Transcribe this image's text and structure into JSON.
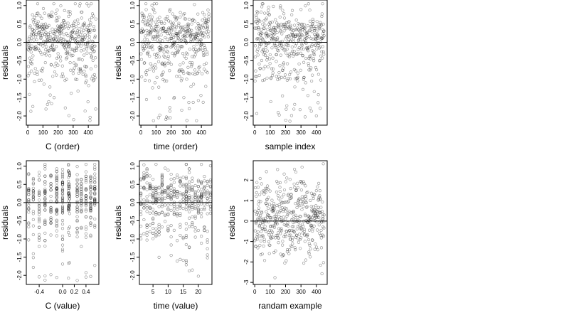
{
  "chart_data": [
    {
      "type": "scatter",
      "xlabel": "C (order)",
      "ylabel": "residuals",
      "xlim": [
        -10,
        470
      ],
      "ylim": [
        -2.25,
        1.15
      ],
      "xticks": [
        0,
        100,
        200,
        300,
        400
      ],
      "yticks": [
        1.0,
        0.5,
        0.0,
        -0.5,
        -1.0,
        -1.5,
        -2.0
      ],
      "ytick_labels": [
        "1.0",
        "0.5",
        "0.0",
        "-0.5",
        "-1.0",
        "-1.5",
        "-2.0"
      ],
      "hline": 0,
      "x_mode": "order",
      "n_points": 450,
      "point_count": 450,
      "y_dist": "residual",
      "seed": 11
    },
    {
      "type": "scatter",
      "xlabel": "time (order)",
      "ylabel": "residuals",
      "xlim": [
        -10,
        470
      ],
      "ylim": [
        -2.25,
        1.15
      ],
      "xticks": [
        0,
        100,
        200,
        300,
        400
      ],
      "yticks": [
        1.0,
        0.5,
        0.0,
        -0.5,
        -1.0,
        -1.5,
        -2.0
      ],
      "ytick_labels": [
        "1.0",
        "0.5",
        "0.0",
        "-0.5",
        "-1.0",
        "-1.5",
        "-2.0"
      ],
      "hline": 0,
      "x_mode": "order",
      "n_points": 450,
      "point_count": 450,
      "y_dist": "residual",
      "seed": 23
    },
    {
      "type": "scatter",
      "xlabel": "sample index",
      "ylabel": "residuals",
      "xlim": [
        -10,
        470
      ],
      "ylim": [
        -2.25,
        1.15
      ],
      "xticks": [
        0,
        100,
        200,
        300,
        400
      ],
      "yticks": [
        1.0,
        0.5,
        0.0,
        -0.5,
        -1.0,
        -1.5,
        -2.0
      ],
      "ytick_labels": [
        "1.0",
        "0.5",
        "0.0",
        "-0.5",
        "-1.0",
        "-1.5",
        "-2.0"
      ],
      "hline": 0,
      "x_mode": "order",
      "n_points": 450,
      "point_count": 450,
      "y_dist": "residual",
      "seed": 37
    },
    {
      "type": "scatter",
      "xlabel": "C (value)",
      "ylabel": "residuals",
      "xlim": [
        -0.62,
        0.62
      ],
      "ylim": [
        -2.25,
        1.15
      ],
      "xticks": [
        -0.4,
        0.0,
        0.2,
        0.4
      ],
      "xtick_labels": [
        "-0.4",
        "0.0",
        "0.2",
        "0.4"
      ],
      "yticks": [
        1.0,
        0.5,
        0.0,
        -0.5,
        -1.0,
        -1.5,
        -2.0
      ],
      "ytick_labels": [
        "1.0",
        "0.5",
        "0.0",
        "-0.5",
        "-1.0",
        "-1.5",
        "-2.0"
      ],
      "hline": 0,
      "x_mode": "levels",
      "x_levels": [
        -0.58,
        -0.5,
        -0.4,
        -0.3,
        -0.2,
        -0.1,
        0.0,
        0.1,
        0.12,
        0.25,
        0.32,
        0.4,
        0.48,
        0.55
      ],
      "n_points": 450,
      "point_count": 450,
      "y_dist": "residual",
      "seed": 41
    },
    {
      "type": "scatter",
      "xlabel": "time (value)",
      "ylabel": "residuals",
      "xlim": [
        0.5,
        24.5
      ],
      "ylim": [
        -2.25,
        1.15
      ],
      "xticks": [
        5,
        10,
        15,
        20
      ],
      "yticks": [
        1.0,
        0.5,
        0.0,
        -0.5,
        -1.0,
        -1.5,
        -2.0
      ],
      "ytick_labels": [
        "1.0",
        "0.5",
        "0.0",
        "-0.5",
        "-1.0",
        "-1.5",
        "-2.0"
      ],
      "hline": 0,
      "x_mode": "levels",
      "x_levels": [
        1,
        2,
        3,
        4,
        5,
        6,
        7,
        8,
        9,
        10,
        11,
        12,
        13,
        14,
        15,
        16,
        17,
        18,
        19,
        20,
        21,
        22,
        23,
        24
      ],
      "n_points": 450,
      "point_count": 450,
      "y_dist": "residual",
      "seed": 53
    },
    {
      "type": "scatter",
      "xlabel": "randam example",
      "ylabel": "residuals",
      "xlim": [
        -10,
        470
      ],
      "ylim": [
        -3.1,
        2.95
      ],
      "xticks": [
        0,
        100,
        200,
        300,
        400
      ],
      "yticks": [
        2,
        1,
        0,
        -1,
        -2,
        -3
      ],
      "ytick_labels": [
        "2",
        "1",
        "0",
        "-1",
        "-2",
        "-3"
      ],
      "hline": 0,
      "x_mode": "order",
      "n_points": 450,
      "point_count": 450,
      "y_dist": "normal",
      "seed": 67
    }
  ]
}
